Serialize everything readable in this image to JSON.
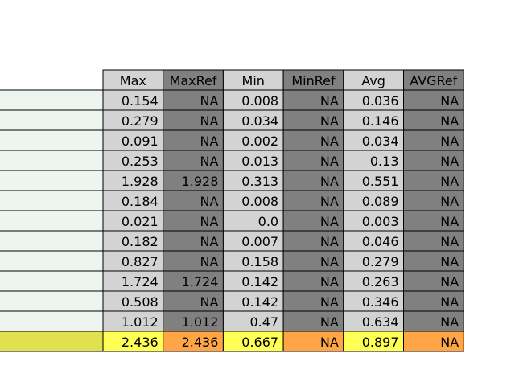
{
  "chart_data": {
    "type": "table",
    "columns": [
      "Max",
      "MaxRef",
      "Min",
      "MinRef",
      "Avg",
      "AVGRef"
    ],
    "rows": [
      [
        "0.154",
        "NA",
        "0.008",
        "NA",
        "0.036",
        "NA"
      ],
      [
        "0.279",
        "NA",
        "0.034",
        "NA",
        "0.146",
        "NA"
      ],
      [
        "0.091",
        "NA",
        "0.002",
        "NA",
        "0.034",
        "NA"
      ],
      [
        "0.253",
        "NA",
        "0.013",
        "NA",
        "0.13",
        "NA"
      ],
      [
        "1.928",
        "1.928",
        "0.313",
        "NA",
        "0.551",
        "NA"
      ],
      [
        "0.184",
        "NA",
        "0.008",
        "NA",
        "0.089",
        "NA"
      ],
      [
        "0.021",
        "NA",
        "0.0",
        "NA",
        "0.003",
        "NA"
      ],
      [
        "0.182",
        "NA",
        "0.007",
        "NA",
        "0.046",
        "NA"
      ],
      [
        "0.827",
        "NA",
        "0.158",
        "NA",
        "0.279",
        "NA"
      ],
      [
        "1.724",
        "1.724",
        "0.142",
        "NA",
        "0.263",
        "NA"
      ],
      [
        "0.508",
        "NA",
        "0.142",
        "NA",
        "0.346",
        "NA"
      ],
      [
        "1.012",
        "1.012",
        "0.47",
        "NA",
        "0.634",
        "NA"
      ],
      [
        "2.436",
        "2.436",
        "0.667",
        "NA",
        "0.897",
        "NA"
      ]
    ],
    "row_labels": [
      "",
      "",
      "",
      "",
      "",
      "",
      "",
      "",
      "",
      "",
      "",
      "",
      ""
    ],
    "highlight_row": 12,
    "colors": {
      "header_light": "#d3d3d3",
      "header_dark": "#808080",
      "cell_light": "#d3d3d3",
      "cell_dark": "#808080",
      "row_label": "#eef5ef",
      "highlight_label": "#e0e050",
      "highlight_light": "#ffff55",
      "highlight_dark": "#ffa545",
      "border": "#000000"
    }
  }
}
